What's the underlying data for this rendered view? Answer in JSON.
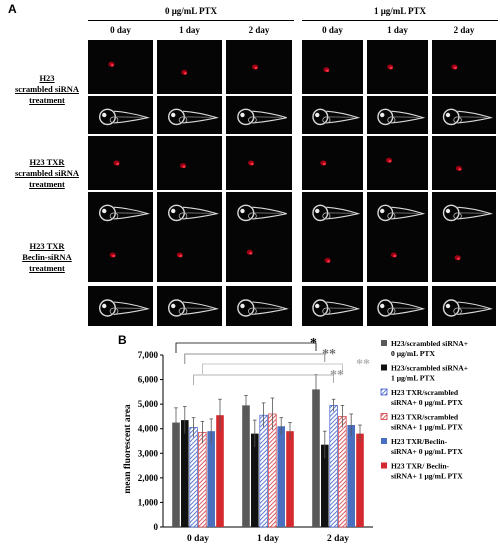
{
  "panel_a": {
    "letter": "A",
    "groups": [
      {
        "title": "0 μg/mL PTX",
        "days": [
          "0 day",
          "1 day",
          "2 day"
        ]
      },
      {
        "title": "1 μg/mL PTX",
        "days": [
          "0 day",
          "1 day",
          "2 day"
        ]
      }
    ],
    "rows": [
      {
        "lines": [
          "H23",
          "scrambled siRNA",
          "treatment"
        ]
      },
      {
        "lines": [
          "H23 TXR",
          "scrambled siRNA",
          "treatment"
        ]
      },
      {
        "lines": [
          "H23 TXR",
          "Beclin-siRNA",
          "treatment"
        ]
      }
    ],
    "colors": {
      "fluor": "#b00018",
      "fish": "#d9d9d9",
      "background": "#050505"
    }
  },
  "panel_b": {
    "letter": "B",
    "significance_marks": [
      {
        "text": "*",
        "color": "#000000"
      },
      {
        "text": "**",
        "color": "#707070"
      },
      {
        "text": "**",
        "color": "#9a9a9a"
      },
      {
        "text": "**",
        "color": "#b5b5b5"
      }
    ]
  },
  "chart_data": {
    "type": "bar",
    "title": "",
    "xlabel": "",
    "ylabel": "mean fluorescent area",
    "categories": [
      "0 day",
      "1 day",
      "2 day"
    ],
    "ylim": [
      0,
      7000
    ],
    "yticks": [
      "0",
      "1,000",
      "2,000",
      "3,000",
      "4,000",
      "5,000",
      "6,000",
      "7,000"
    ],
    "ytick_values": [
      0,
      1000,
      2000,
      3000,
      4000,
      5000,
      6000,
      7000
    ],
    "grid": false,
    "legend_position": "right",
    "series": [
      {
        "name": "H23/scrambled siRNA+ 0 μg/mL PTX",
        "color": "#595959",
        "pattern": "solid",
        "values": [
          4250,
          4950,
          5600
        ],
        "errors": [
          600,
          400,
          600
        ]
      },
      {
        "name": "H23/scrambled siRNA+ 1 μg/mL PTX",
        "color": "#111111",
        "pattern": "solid",
        "values": [
          4350,
          3800,
          3350
        ],
        "errors": [
          550,
          550,
          550
        ]
      },
      {
        "name": "H23 TXR/scrambled siRNA+ 0 μg/mL PTX",
        "color": "#3a5ac8",
        "pattern": "hatch",
        "values": [
          4050,
          4550,
          4950
        ],
        "errors": [
          400,
          500,
          250
        ]
      },
      {
        "name": "H23 TXR/scrambled siRNA+ 1 μg/mL PTX",
        "color": "#d0343a",
        "pattern": "hatch",
        "values": [
          3850,
          4600,
          4500
        ],
        "errors": [
          450,
          650,
          450
        ]
      },
      {
        "name": "H23 TXR/Beclin-siRNA+ 0 μg/mL PTX",
        "color": "#4a6fbf",
        "pattern": "solid",
        "values": [
          3900,
          4100,
          4150
        ],
        "errors": [
          500,
          350,
          450
        ]
      },
      {
        "name": "H23 TXR/ Beclin-siRNA+ 1 μg/mL PTX",
        "color": "#d42a2f",
        "pattern": "solid",
        "values": [
          4550,
          3900,
          3800
        ],
        "errors": [
          650,
          350,
          350
        ]
      }
    ],
    "legend_lines": [
      [
        "H23/scrambled siRNA+",
        "0 μg/mL PTX"
      ],
      [
        "H23/scrambled siRNA+",
        "1 μg/mL PTX"
      ],
      [
        "H23 TXR/scrambled",
        "siRNA+ 0 μg/mL PTX"
      ],
      [
        "H23 TXR/scrambled",
        "siRNA+ 1 μg/mL PTX"
      ],
      [
        "H23 TXR/Beclin-",
        "siRNA+ 0 μg/mL PTX"
      ],
      [
        "H23 TXR/ Beclin-",
        "siRNA+ 1 μg/mL PTX"
      ]
    ]
  }
}
